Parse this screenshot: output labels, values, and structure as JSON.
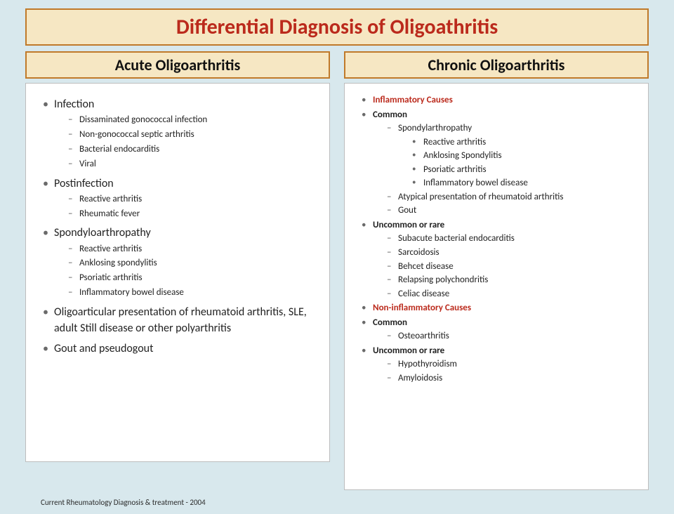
{
  "title": "Differential Diagnosis of Oligoathritis",
  "left": {
    "heading": "Acute Oligoarthritis",
    "items": [
      {
        "text": "Infection",
        "sub": [
          "Dissaminated gonococcal infection",
          "Non-gonococcal septic arthritis",
          "Bacterial endocarditis",
          "Viral"
        ]
      },
      {
        "text": "Postinfection",
        "sub": [
          "Reactive arthritis",
          "Rheumatic fever"
        ]
      },
      {
        "text": "Spondyloarthropathy",
        "sub": [
          "Reactive arthritis",
          "Anklosing spondylitis",
          "Psoriatic arthritis",
          "Inflammatory bowel disease"
        ]
      },
      {
        "text": "Oligoarticular presentation of rheumatoid arthritis, SLE, adult Still disease or other polyarthritis"
      },
      {
        "text": "Gout and pseudogout"
      }
    ]
  },
  "right": {
    "heading": "Chronic Oligoarthritis",
    "items": [
      {
        "text": "Inflammatory Causes",
        "red": true,
        "bold": true
      },
      {
        "text": "Common",
        "bold": true,
        "sub": [
          {
            "text": "Spondylarthropathy",
            "sub3": [
              "Reactive arthritis",
              "Anklosing Spondylitis",
              "Psoriatic arthritis",
              "Inflammatory bowel disease"
            ]
          },
          {
            "text": "Atypical presentation of rheumatoid arthritis"
          },
          {
            "text": "Gout"
          }
        ]
      },
      {
        "text": "Uncommon or rare",
        "bold": true,
        "sub": [
          {
            "text": "Subacute bacterial endocarditis"
          },
          {
            "text": "Sarcoidosis"
          },
          {
            "text": "Behcet disease"
          },
          {
            "text": "Relapsing polychondritis"
          },
          {
            "text": "Celiac disease"
          }
        ]
      },
      {
        "text": "Non-inflammatory Causes",
        "red": true,
        "bold": true
      },
      {
        "text": "Common",
        "bold": true,
        "sub": [
          {
            "text": "Osteoarthritis"
          }
        ]
      },
      {
        "text": "Uncommon or rare",
        "bold": true,
        "sub": [
          {
            "text": "Hypothyroidism"
          },
          {
            "text": "Amyloidosis"
          }
        ]
      }
    ]
  },
  "citation": "Current Rheumatology Diagnosis & treatment - 2004",
  "colors": {
    "page_bg": "#d8e8ed",
    "panel_bg": "#f6e7c3",
    "panel_border": "#c07a2a",
    "accent_red": "#bb2a1c",
    "box_bg": "#ffffff",
    "box_border": "#bdbdbd"
  }
}
